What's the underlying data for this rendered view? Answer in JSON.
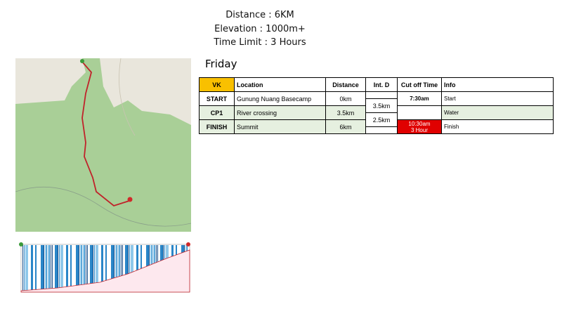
{
  "header": {
    "lines": [
      "Distance : 6KM",
      "Elevation : 1000m+",
      "Time Limit : 3 Hours"
    ]
  },
  "day": "Friday",
  "table": {
    "columns": [
      "VK",
      "Location",
      "Distance",
      "Int. D",
      "Cut off Time",
      "Info"
    ],
    "rows": [
      {
        "checkpoint": "START",
        "location": "Gunung Nuang Basecamp",
        "distance": "0km",
        "cutoff": [
          "7:30am"
        ],
        "info": "Start"
      },
      {
        "checkpoint": "CP1",
        "location": "River crossing",
        "distance": "3.5km",
        "info": "Water"
      },
      {
        "checkpoint": "FINISH",
        "location": "Summit",
        "distance": "6km",
        "cutoff": [
          "10:30am",
          "3 Hour"
        ],
        "info": "Finish"
      }
    ],
    "intervals": [
      "3.5km",
      "2.5km"
    ]
  }
}
